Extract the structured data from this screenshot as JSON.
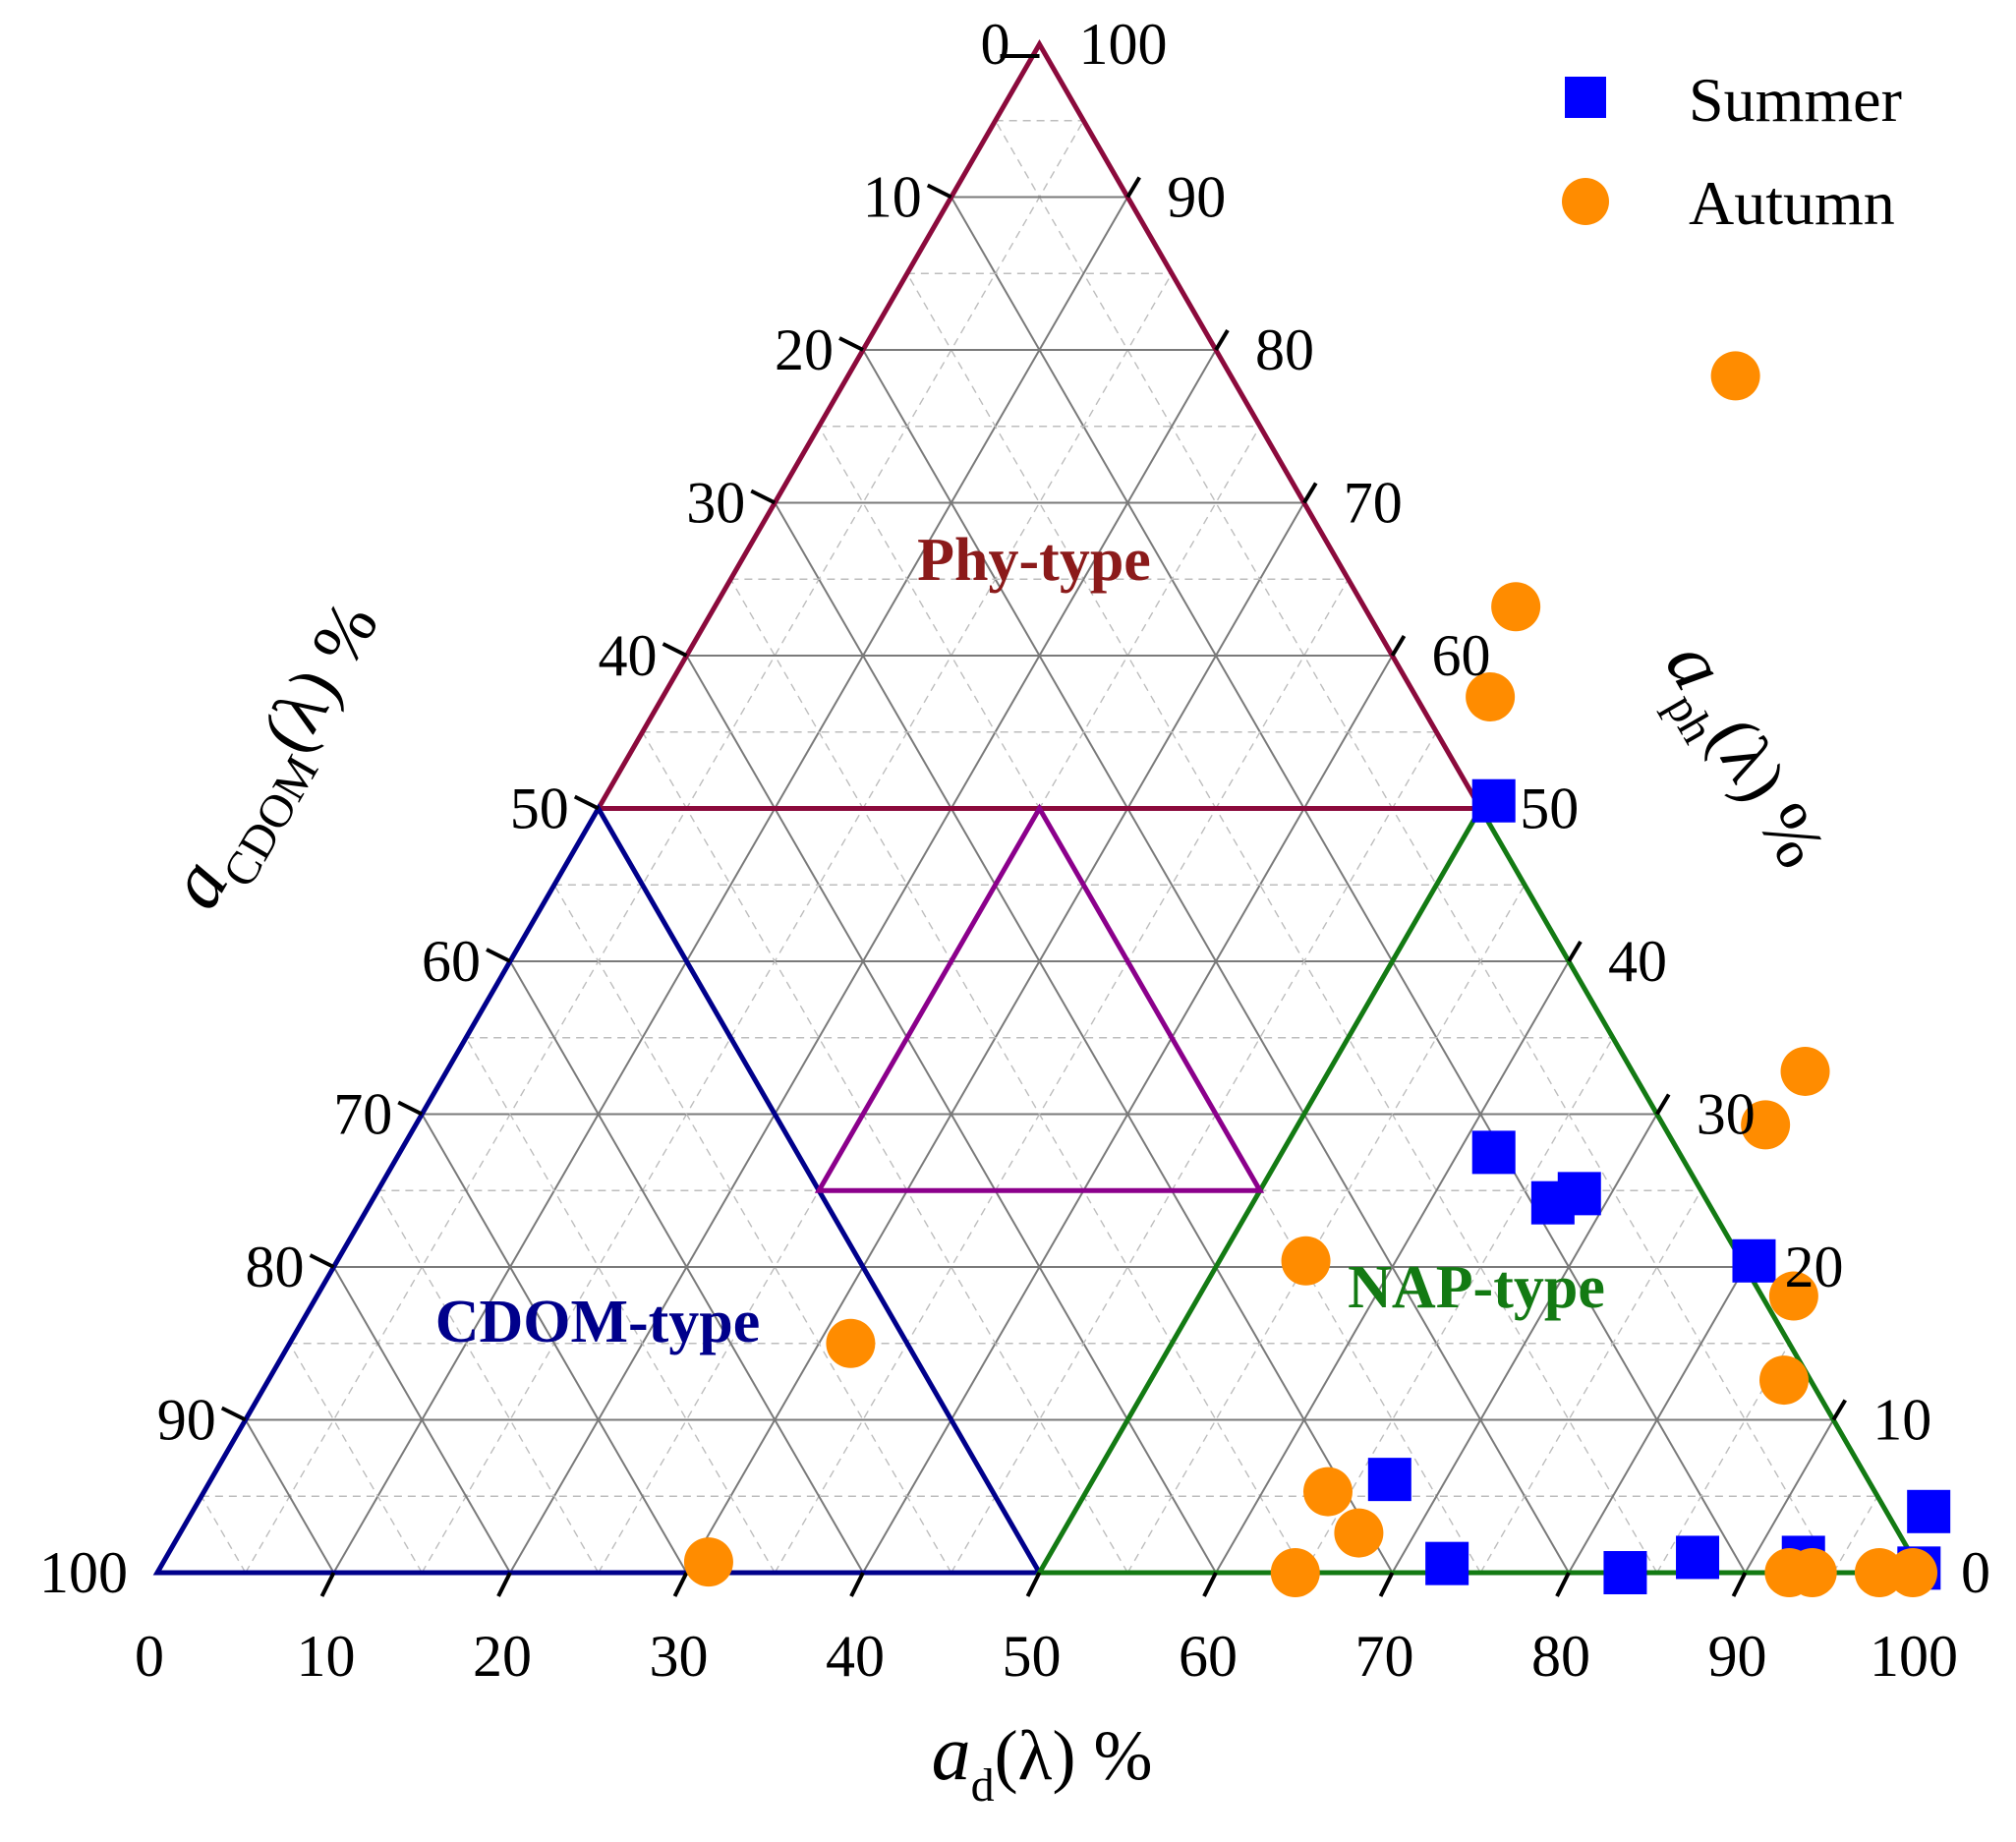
{
  "chart_data": {
    "type": "scatter",
    "subtype": "ternary",
    "axes": {
      "bottom": {
        "var": "a",
        "sub": "d",
        "suffix": "(λ) %",
        "ticks": [
          "0",
          "10",
          "20",
          "30",
          "40",
          "50",
          "60",
          "70",
          "80",
          "90",
          "100"
        ]
      },
      "left": {
        "var": "a",
        "sub": "CDOM",
        "suffix": "(λ) %",
        "ticks": [
          "0",
          "10",
          "20",
          "30",
          "40",
          "50",
          "60",
          "70",
          "80",
          "90",
          "100"
        ]
      },
      "right": {
        "var": "a",
        "sub": "ph",
        "suffix": "(λ) %",
        "ticks": [
          "0",
          "10",
          "20",
          "30",
          "40",
          "50",
          "60",
          "70",
          "80",
          "90",
          "100"
        ]
      }
    },
    "grid": true,
    "legend": {
      "placement": "top-right",
      "entries": [
        {
          "name": "Summer",
          "marker": "square",
          "color": "#0000ff"
        },
        {
          "name": "Autumn",
          "marker": "circle",
          "color": "#ff8c00"
        }
      ]
    },
    "regions": [
      {
        "label": "Phy-type",
        "color": "#8b0a3c",
        "label_color": "#8b1a1a",
        "vertices_ph_d": [
          [
            100,
            0
          ],
          [
            50,
            0
          ],
          [
            50,
            50
          ]
        ]
      },
      {
        "label": "CDOM-type",
        "color": "#00008b",
        "label_color": "#00008b",
        "vertices_ph_d": [
          [
            0,
            0
          ],
          [
            50,
            0
          ],
          [
            0,
            50
          ]
        ]
      },
      {
        "label": "NAP-type",
        "color": "#137a13",
        "label_color": "#137a13",
        "vertices_ph_d": [
          [
            0,
            100
          ],
          [
            0,
            50
          ],
          [
            50,
            50
          ]
        ]
      },
      {
        "label": "",
        "color": "#8b008b",
        "label_color": "#8b008b",
        "vertices_ph_d": [
          [
            50,
            25
          ],
          [
            25,
            25
          ],
          [
            25,
            50
          ]
        ]
      }
    ],
    "series": [
      {
        "name": "Summer",
        "marker": "square",
        "color": "#0000ff",
        "points_ph_d": [
          [
            50.5,
            50.5
          ],
          [
            27.5,
            62.0
          ],
          [
            24.2,
            67.0
          ],
          [
            24.8,
            68.2
          ],
          [
            20.4,
            80.3
          ],
          [
            6.1,
            66.8
          ],
          [
            0.6,
            72.8
          ],
          [
            0.0,
            83.2
          ],
          [
            1.0,
            86.8
          ],
          [
            1.0,
            92.8
          ],
          [
            4.0,
            98.4
          ],
          [
            0.3,
            99.7
          ]
        ]
      },
      {
        "name": "Autumn",
        "marker": "circle",
        "color": "#ff8c00",
        "points_ph_d": [
          [
            78.3,
            50.3
          ],
          [
            63.2,
            45.4
          ],
          [
            57.3,
            46.9
          ],
          [
            20.4,
            54.9
          ],
          [
            15.0,
            31.8
          ],
          [
            0.7,
            30.9
          ],
          [
            32.8,
            77.0
          ],
          [
            29.3,
            76.5
          ],
          [
            18.1,
            83.7
          ],
          [
            12.6,
            85.9
          ],
          [
            5.3,
            63.7
          ],
          [
            2.6,
            66.8
          ],
          [
            0.0,
            64.5
          ],
          [
            0.0,
            92.5
          ],
          [
            0.0,
            93.8
          ],
          [
            0.0,
            97.6
          ],
          [
            0.0,
            99.5
          ]
        ]
      }
    ]
  }
}
